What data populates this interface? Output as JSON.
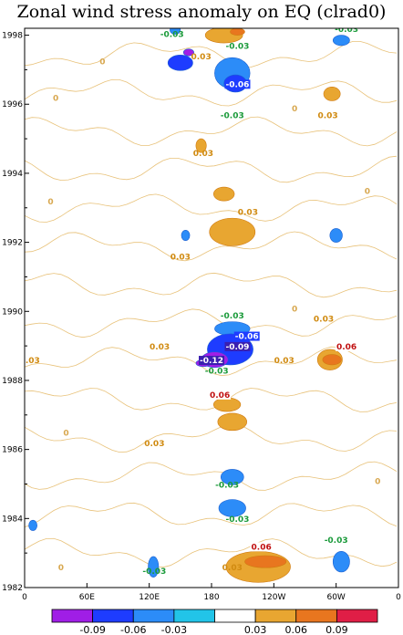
{
  "chart_data": {
    "type": "heatmap",
    "title": "Zonal wind stress anomaly on EQ (clrad0)",
    "x_ticks": [
      {
        "lon": 0,
        "label": "0"
      },
      {
        "lon": 60,
        "label": "60E"
      },
      {
        "lon": 120,
        "label": "120E"
      },
      {
        "lon": 180,
        "label": "180"
      },
      {
        "lon": 240,
        "label": "120W"
      },
      {
        "lon": 300,
        "label": "60W"
      },
      {
        "lon": 360,
        "label": "0"
      }
    ],
    "y_ticks": [
      {
        "year": 1982,
        "label": "1982"
      },
      {
        "year": 1984,
        "label": "1984"
      },
      {
        "year": 1986,
        "label": "1986"
      },
      {
        "year": 1988,
        "label": "1988"
      },
      {
        "year": 1990,
        "label": "1990"
      },
      {
        "year": 1992,
        "label": "1992"
      },
      {
        "year": 1994,
        "label": "1994"
      },
      {
        "year": 1996,
        "label": "1996"
      },
      {
        "year": 1998,
        "label": "1998"
      }
    ],
    "xlim": [
      0,
      360
    ],
    "ylim": [
      1982,
      1998.2
    ],
    "colorbar": {
      "labels": [
        "-0.09",
        "-0.06",
        "-0.03",
        "0.03",
        "0.06",
        "0.09"
      ],
      "colors": [
        "#a01ee6",
        "#1e3cff",
        "#2c8cf8",
        "#22c4e8",
        "#ffffff",
        "#e8a631",
        "#e8761f",
        "#e01e46"
      ]
    },
    "anomaly_regions": [
      {
        "lon": 150,
        "year": 1997.2,
        "w": 24,
        "h": 0.45,
        "value": -0.06
      },
      {
        "lon": 158,
        "year": 1997.5,
        "w": 10,
        "h": 0.2,
        "value": -0.09
      },
      {
        "lon": 145,
        "year": 1998.15,
        "w": 10,
        "h": 0.25,
        "value": -0.03
      },
      {
        "lon": 192,
        "year": 1998.0,
        "w": 36,
        "h": 0.45,
        "value": 0.03
      },
      {
        "lon": 205,
        "year": 1998.1,
        "w": 14,
        "h": 0.2,
        "value": 0.06
      },
      {
        "lon": 200,
        "year": 1996.9,
        "w": 34,
        "h": 0.9,
        "value": -0.03
      },
      {
        "lon": 203,
        "year": 1996.6,
        "w": 22,
        "h": 0.5,
        "value": -0.06
      },
      {
        "lon": 305,
        "year": 1997.85,
        "w": 16,
        "h": 0.3,
        "value": -0.03
      },
      {
        "lon": 296,
        "year": 1996.3,
        "w": 16,
        "h": 0.4,
        "value": 0.03
      },
      {
        "lon": 170,
        "year": 1994.8,
        "w": 10,
        "h": 0.4,
        "value": 0.03
      },
      {
        "lon": 192,
        "year": 1993.4,
        "w": 20,
        "h": 0.4,
        "value": 0.03
      },
      {
        "lon": 200,
        "year": 1992.3,
        "w": 44,
        "h": 0.8,
        "value": 0.03
      },
      {
        "lon": 155,
        "year": 1992.2,
        "w": 8,
        "h": 0.3,
        "value": -0.03
      },
      {
        "lon": 300,
        "year": 1992.2,
        "w": 12,
        "h": 0.4,
        "value": -0.03
      },
      {
        "lon": 200,
        "year": 1989.5,
        "w": 34,
        "h": 0.4,
        "value": -0.03
      },
      {
        "lon": 198,
        "year": 1988.9,
        "w": 44,
        "h": 0.9,
        "value": -0.06
      },
      {
        "lon": 183,
        "year": 1988.6,
        "w": 26,
        "h": 0.45,
        "value": -0.09
      },
      {
        "lon": 172,
        "year": 1988.5,
        "w": 14,
        "h": 0.2,
        "value": -0.12
      },
      {
        "lon": 294,
        "year": 1988.6,
        "w": 24,
        "h": 0.6,
        "value": 0.03
      },
      {
        "lon": 296,
        "year": 1988.6,
        "w": 18,
        "h": 0.3,
        "value": 0.06
      },
      {
        "lon": 195,
        "year": 1987.3,
        "w": 26,
        "h": 0.4,
        "value": 0.03
      },
      {
        "lon": 200,
        "year": 1986.8,
        "w": 28,
        "h": 0.5,
        "value": 0.03
      },
      {
        "lon": 200,
        "year": 1985.2,
        "w": 22,
        "h": 0.45,
        "value": -0.03
      },
      {
        "lon": 200,
        "year": 1984.3,
        "w": 26,
        "h": 0.5,
        "value": -0.03
      },
      {
        "lon": 225,
        "year": 1982.6,
        "w": 62,
        "h": 0.9,
        "value": 0.03
      },
      {
        "lon": 232,
        "year": 1982.75,
        "w": 40,
        "h": 0.35,
        "value": 0.06
      },
      {
        "lon": 305,
        "year": 1982.75,
        "w": 16,
        "h": 0.6,
        "value": -0.03
      },
      {
        "lon": 124,
        "year": 1982.6,
        "w": 10,
        "h": 0.6,
        "value": -0.03
      },
      {
        "lon": 8,
        "year": 1983.8,
        "w": 8,
        "h": 0.3,
        "value": -0.03
      }
    ],
    "contour_labels": [
      {
        "lon": 142,
        "year": 1997.95,
        "text": "-0.03"
      },
      {
        "lon": 170,
        "year": 1997.3,
        "text": "0.03"
      },
      {
        "lon": 205,
        "year": 1997.6,
        "text": "-0.03"
      },
      {
        "lon": 310,
        "year": 1998.1,
        "text": "-0.03"
      },
      {
        "lon": 205,
        "year": 1996.5,
        "text": "-0.06"
      },
      {
        "lon": 200,
        "year": 1995.6,
        "text": "-0.03"
      },
      {
        "lon": 292,
        "year": 1995.6,
        "text": "0.03"
      },
      {
        "lon": 172,
        "year": 1994.5,
        "text": "0.03"
      },
      {
        "lon": 215,
        "year": 1992.8,
        "text": "0.03"
      },
      {
        "lon": 150,
        "year": 1991.5,
        "text": "0.03"
      },
      {
        "lon": 200,
        "year": 1989.8,
        "text": "-0.03"
      },
      {
        "lon": 214,
        "year": 1989.2,
        "text": "-0.06"
      },
      {
        "lon": 205,
        "year": 1988.9,
        "text": "-0.09"
      },
      {
        "lon": 130,
        "year": 1988.9,
        "text": "0.03"
      },
      {
        "lon": 180,
        "year": 1988.5,
        "text": "-0.12"
      },
      {
        "lon": 185,
        "year": 1988.2,
        "text": "-0.03"
      },
      {
        "lon": 5,
        "year": 1988.5,
        "text": "0.03"
      },
      {
        "lon": 250,
        "year": 1988.5,
        "text": "0.03"
      },
      {
        "lon": 288,
        "year": 1989.7,
        "text": "0.03"
      },
      {
        "lon": 310,
        "year": 1988.9,
        "text": "0.06"
      },
      {
        "lon": 188,
        "year": 1987.5,
        "text": "0.06"
      },
      {
        "lon": 125,
        "year": 1986.1,
        "text": "0.03"
      },
      {
        "lon": 195,
        "year": 1984.9,
        "text": "-0.03"
      },
      {
        "lon": 205,
        "year": 1983.9,
        "text": "-0.03"
      },
      {
        "lon": 228,
        "year": 1983.1,
        "text": "0.06"
      },
      {
        "lon": 200,
        "year": 1982.5,
        "text": "0.03"
      },
      {
        "lon": 300,
        "year": 1983.3,
        "text": "-0.03"
      },
      {
        "lon": 125,
        "year": 1982.4,
        "text": "-0.03"
      }
    ],
    "zero_labels": [
      {
        "lon": 75,
        "year": 1997.15,
        "text": "0"
      },
      {
        "lon": 30,
        "year": 1996.1,
        "text": "0"
      },
      {
        "lon": 260,
        "year": 1995.8,
        "text": "0"
      },
      {
        "lon": 25,
        "year": 1993.1,
        "text": "0"
      },
      {
        "lon": 330,
        "year": 1993.4,
        "text": "0"
      },
      {
        "lon": 260,
        "year": 1990.0,
        "text": "0"
      },
      {
        "lon": 40,
        "year": 1986.4,
        "text": "0"
      },
      {
        "lon": 340,
        "year": 1985.0,
        "text": "0"
      },
      {
        "lon": 35,
        "year": 1982.5,
        "text": "0"
      }
    ]
  }
}
